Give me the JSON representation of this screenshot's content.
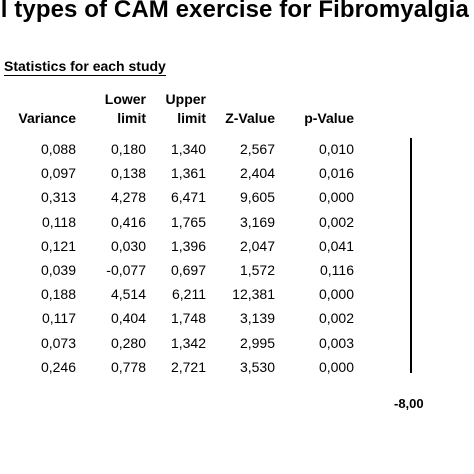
{
  "title": "ll types of CAM exercise for Fibromyalgia",
  "section_label": "Statistics for each study",
  "chart_data": {
    "type": "table",
    "columns": [
      {
        "key": "variance",
        "label": [
          "Variance"
        ]
      },
      {
        "key": "lower",
        "label": [
          "Lower",
          "limit"
        ]
      },
      {
        "key": "upper",
        "label": [
          "Upper",
          "limit"
        ]
      },
      {
        "key": "z",
        "label": [
          "Z-Value"
        ]
      },
      {
        "key": "p",
        "label": [
          "p-Value"
        ]
      }
    ],
    "rows": [
      [
        "0,088",
        "0,180",
        "1,340",
        "2,567",
        "0,010"
      ],
      [
        "0,097",
        "0,138",
        "1,361",
        "2,404",
        "0,016"
      ],
      [
        "0,313",
        "4,278",
        "6,471",
        "9,605",
        "0,000"
      ],
      [
        "0,118",
        "0,416",
        "1,765",
        "3,169",
        "0,002"
      ],
      [
        "0,121",
        "0,030",
        "1,396",
        "2,047",
        "0,041"
      ],
      [
        "0,039",
        "-0,077",
        "0,697",
        "1,572",
        "0,116"
      ],
      [
        "0,188",
        "4,514",
        "6,211",
        "12,381",
        "0,000"
      ],
      [
        "0,117",
        "0,404",
        "1,748",
        "3,139",
        "0,002"
      ],
      [
        "0,073",
        "0,280",
        "1,342",
        "2,995",
        "0,003"
      ],
      [
        "0,246",
        "0,778",
        "2,721",
        "3,530",
        "0,000"
      ]
    ],
    "axis_tick_label": "-8,00"
  }
}
